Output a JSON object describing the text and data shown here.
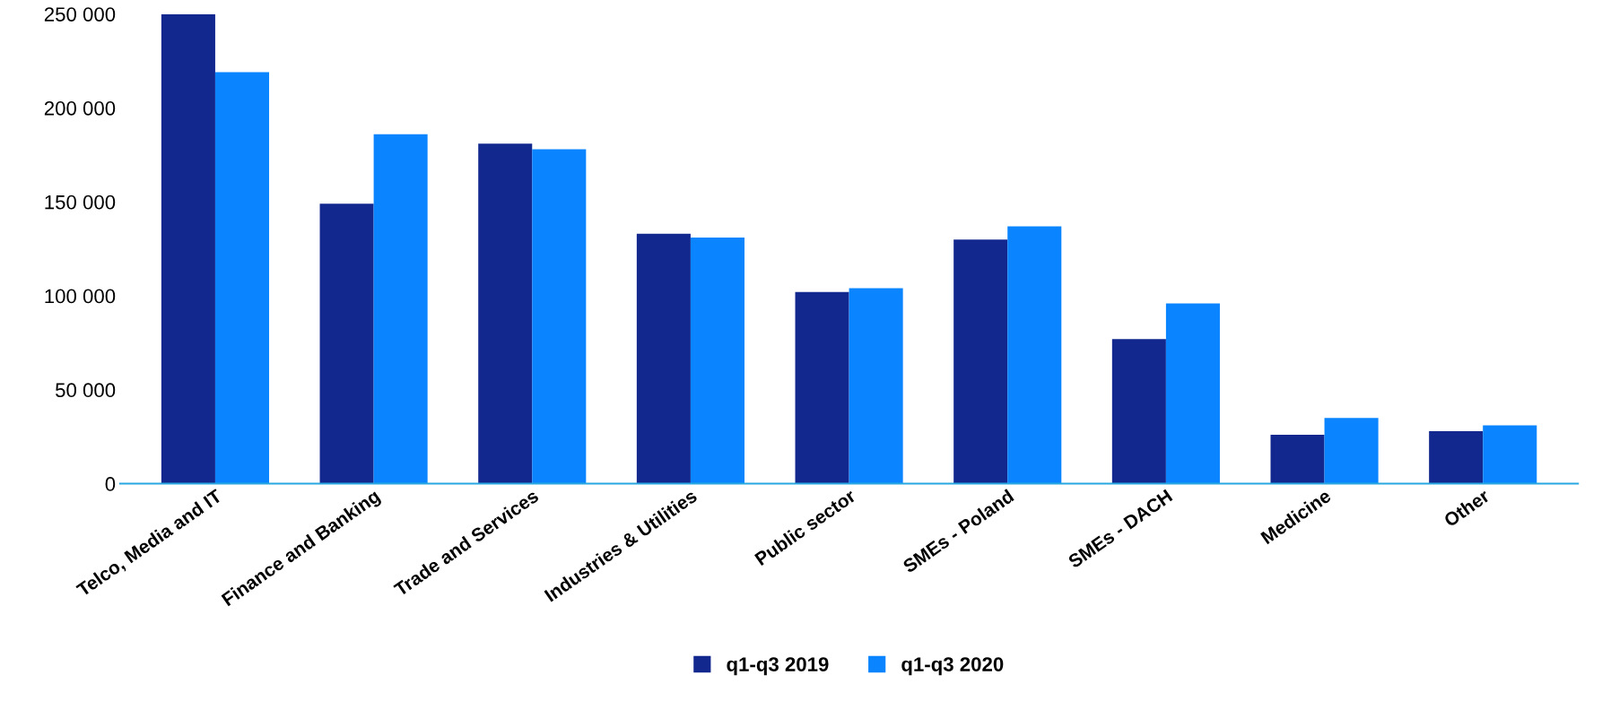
{
  "chart_data": {
    "type": "bar",
    "categories": [
      "Telco, Media and IT",
      "Finance and Banking",
      "Trade and Services",
      "Industries & Utilities",
      "Public sector",
      "SMEs - Poland",
      "SMEs - DACH",
      "Medicine",
      "Other"
    ],
    "series": [
      {
        "name": "q1-q3 2019",
        "color": "#13288f",
        "values": [
          250000,
          149000,
          181000,
          133000,
          102000,
          130000,
          77000,
          26000,
          28000
        ]
      },
      {
        "name": "q1-q3 2020",
        "color": "#0a84ff",
        "values": [
          219000,
          186000,
          178000,
          131000,
          104000,
          137000,
          96000,
          35000,
          31000
        ]
      }
    ],
    "ylim": [
      0,
      250000
    ],
    "yticks": [
      {
        "value": 0,
        "label": "0"
      },
      {
        "value": 50000,
        "label": "50 000"
      },
      {
        "value": 100000,
        "label": "100 000"
      },
      {
        "value": 150000,
        "label": "150 000"
      },
      {
        "value": 200000,
        "label": "200 000"
      },
      {
        "value": 250000,
        "label": "250 000"
      }
    ],
    "grid": false,
    "legend": "bottom"
  }
}
